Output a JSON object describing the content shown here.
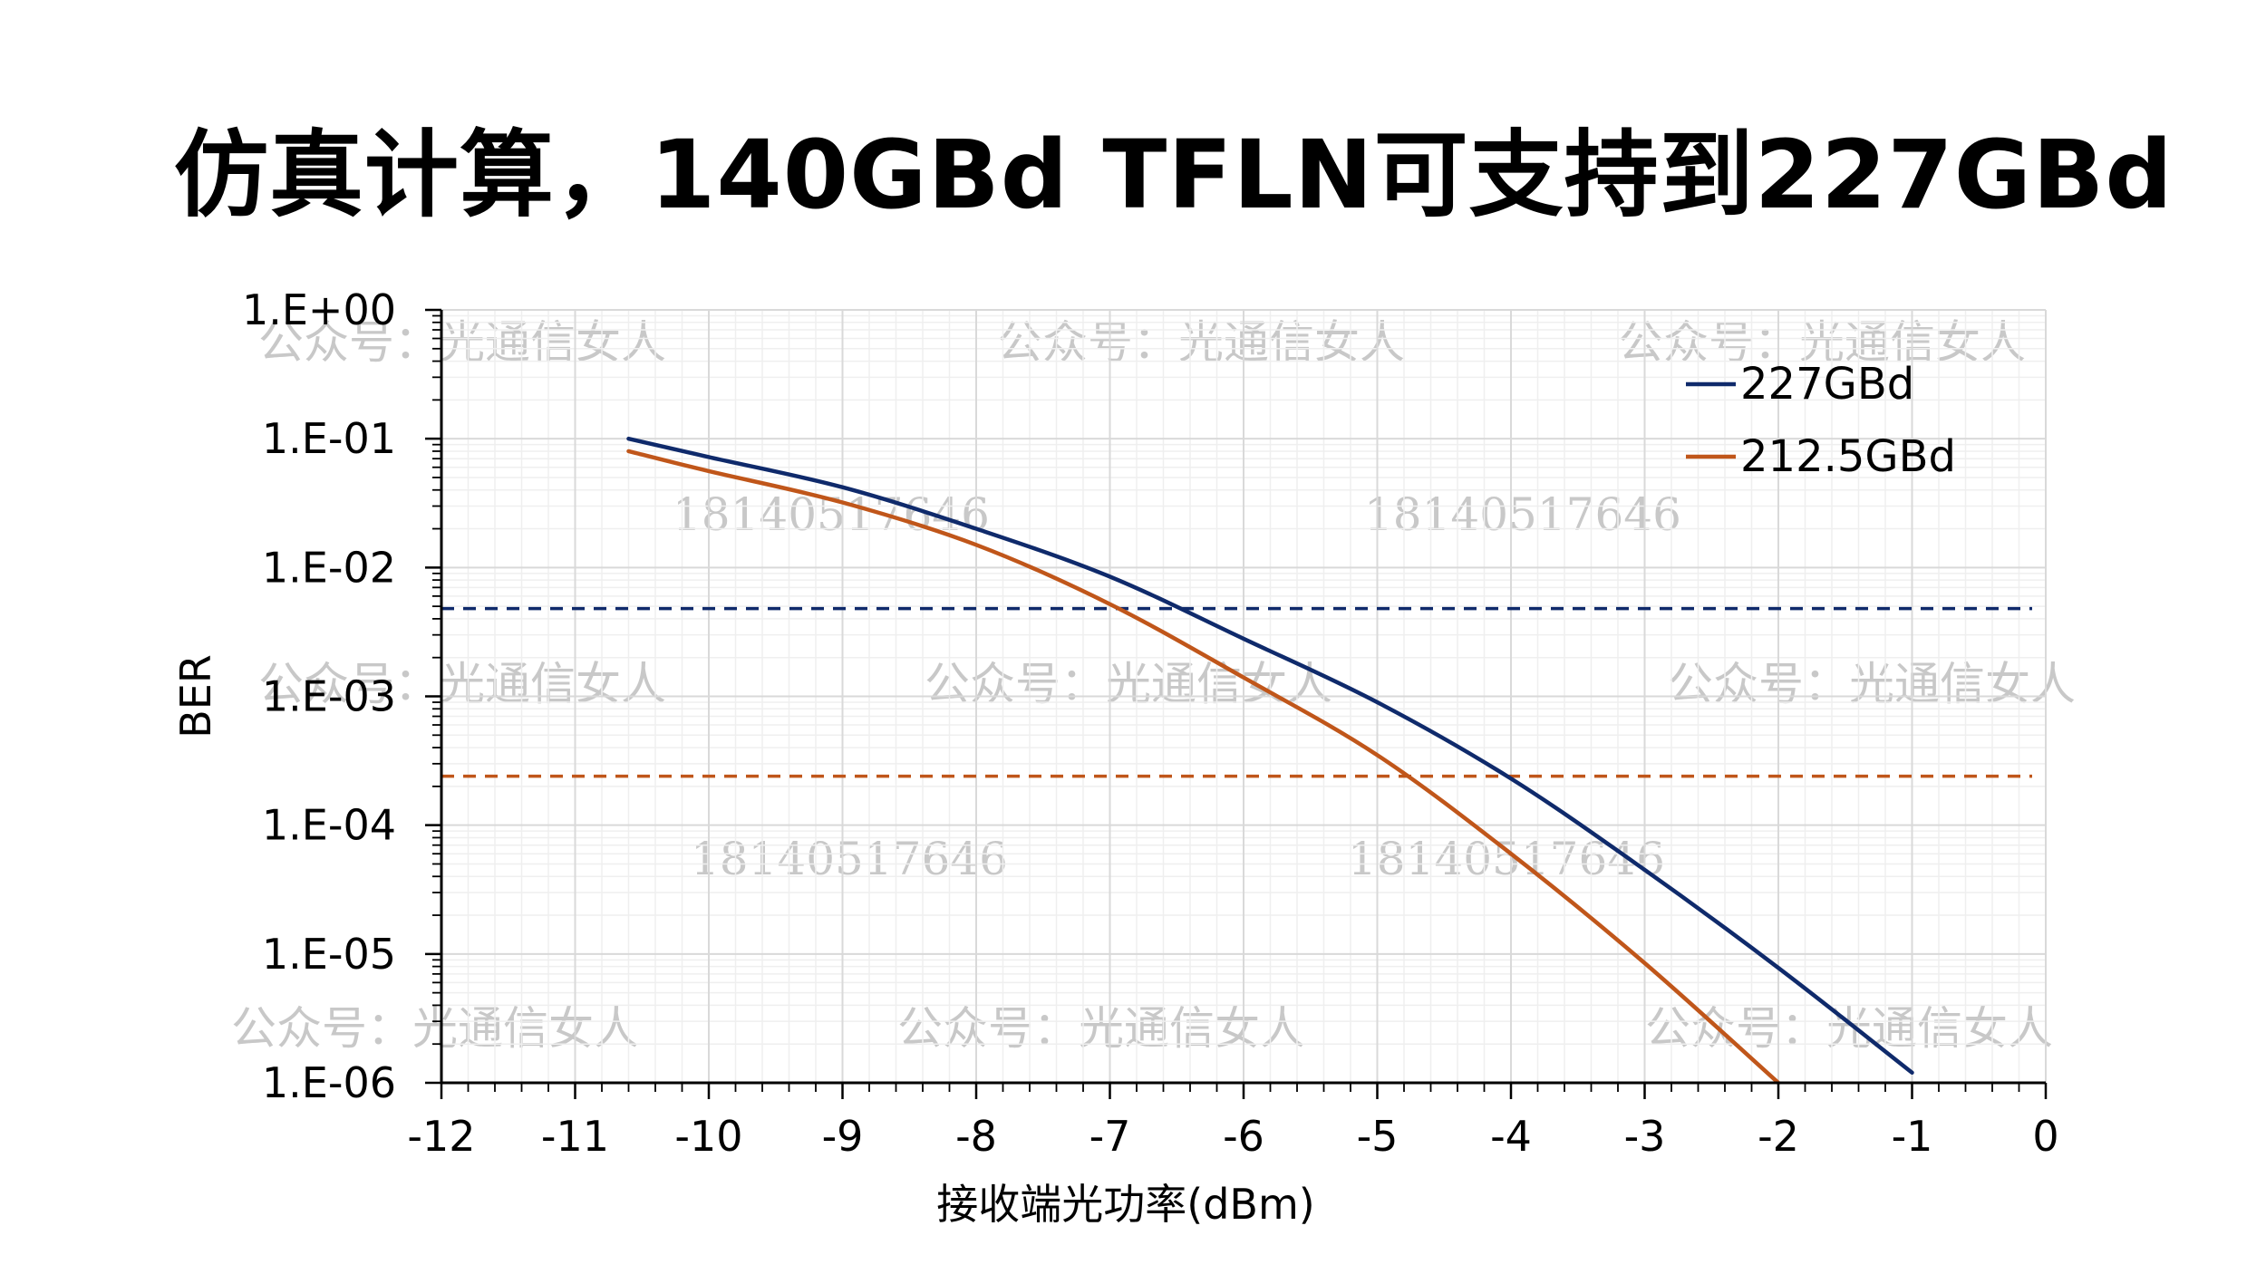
{
  "slide": {
    "title": "仿真计算，140GBd TFLN可支持到227GBd"
  },
  "watermarks": {
    "account": "公众号：光通信女人",
    "phone": "18140517646"
  },
  "chart_data": {
    "type": "line",
    "title": "",
    "xlabel": "接收端光功率(dBm)",
    "ylabel": "BER",
    "x_scale": "linear",
    "y_scale": "log",
    "xlim": [
      -12,
      0
    ],
    "ylim": [
      1e-06,
      1
    ],
    "x_ticks": [
      -12,
      -11,
      -10,
      -9,
      -8,
      -7,
      -6,
      -5,
      -4,
      -3,
      -2,
      -1,
      0
    ],
    "x_tick_labels": [
      "-12",
      "-11",
      "-10",
      "-9",
      "-8",
      "-7",
      "-6",
      "-5",
      "-4",
      "-3",
      "-2",
      "-1",
      "0"
    ],
    "y_ticks": [
      1,
      0.1,
      0.01,
      0.001,
      0.0001,
      1e-05,
      1e-06
    ],
    "y_tick_labels": [
      "1.E+00",
      "1.E-01",
      "1.E-02",
      "1.E-03",
      "1.E-04",
      "1.E-05",
      "1.E-06"
    ],
    "grid": true,
    "legend_position": "top-right",
    "series": [
      {
        "name": "227GBd",
        "color": "#0f2a6b",
        "x": [
          -10.6,
          -10,
          -9,
          -8,
          -7,
          -6,
          -5,
          -4,
          -3,
          -2,
          -1
        ],
        "y": [
          0.1,
          0.072,
          0.042,
          0.02,
          0.0085,
          0.0028,
          0.0009,
          0.00023,
          4.5e-05,
          7.8e-06,
          1.2e-06
        ]
      },
      {
        "name": "212.5GBd",
        "color": "#c0561a",
        "x": [
          -10.6,
          -10,
          -9,
          -8,
          -7,
          -6,
          -5,
          -4,
          -3,
          -2
        ],
        "y": [
          0.08,
          0.056,
          0.032,
          0.015,
          0.0052,
          0.0014,
          0.00035,
          6e-05,
          8.5e-06,
          1e-06
        ]
      }
    ],
    "thresholds": [
      {
        "y": 0.0048,
        "color": "#0f2a6b",
        "style": "dashed"
      },
      {
        "y": 0.00024,
        "color": "#c0561a",
        "style": "dashed"
      }
    ]
  }
}
